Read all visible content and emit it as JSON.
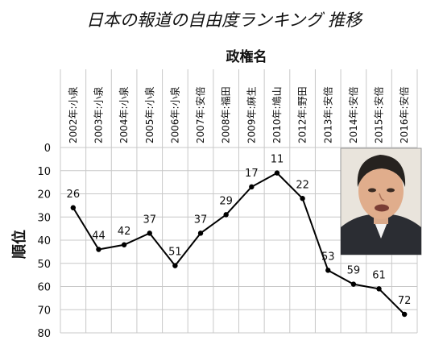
{
  "chart_data": {
    "type": "line",
    "title": "日本の報道の自由度ランキング 推移",
    "subtitle": "政権名",
    "xlabel": "",
    "ylabel": "順位",
    "categories": [
      "2002年:小泉",
      "2003年:小泉",
      "2004年:小泉",
      "2005年:小泉",
      "2006年:小泉",
      "2007年:安倍",
      "2008年:福田",
      "2009年:麻生",
      "2010年:鳩山",
      "2012年:野田",
      "2013年:安倍",
      "2014年:安倍",
      "2015年:安倍",
      "2016年:安倍"
    ],
    "series": [
      {
        "values": [
          26,
          44,
          42,
          37,
          51,
          37,
          29,
          17,
          11,
          22,
          53,
          59,
          61,
          72
        ]
      }
    ],
    "ylim": [
      0,
      80
    ],
    "y_reversed": true,
    "y_ticks": [
      0,
      10,
      20,
      30,
      40,
      50,
      60,
      70,
      80
    ],
    "grid": true,
    "line_color": "#000000",
    "grid_color": "#c8c8c8"
  },
  "photo": {
    "icon": "person-photo"
  }
}
